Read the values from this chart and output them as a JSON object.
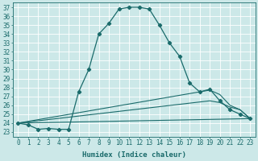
{
  "xlabel": "Humidex (Indice chaleur)",
  "bg_color": "#cce8e8",
  "line_color": "#1a6b6b",
  "grid_color": "#ffffff",
  "xlim": [
    -0.5,
    23.5
  ],
  "ylim": [
    22.5,
    37.5
  ],
  "yticks": [
    23,
    24,
    25,
    26,
    27,
    28,
    29,
    30,
    31,
    32,
    33,
    34,
    35,
    36,
    37
  ],
  "xticks": [
    0,
    1,
    2,
    3,
    4,
    5,
    6,
    7,
    8,
    9,
    10,
    11,
    12,
    13,
    14,
    15,
    16,
    17,
    18,
    19,
    20,
    21,
    22,
    23
  ],
  "curve1_x": [
    0,
    1,
    2,
    3,
    4,
    5,
    6,
    7,
    8,
    9,
    10,
    11,
    12,
    13,
    14,
    15,
    16,
    17,
    18,
    19,
    20,
    21,
    22,
    23
  ],
  "curve1_y": [
    24.0,
    23.8,
    23.3,
    23.4,
    23.3,
    23.3,
    27.5,
    30.0,
    34.0,
    35.2,
    36.8,
    37.0,
    37.0,
    36.8,
    35.0,
    33.0,
    31.5,
    28.5,
    27.5,
    27.8,
    26.5,
    25.5,
    25.0,
    24.5
  ],
  "curve2_x": [
    0,
    23
  ],
  "curve2_y": [
    24.0,
    24.5
  ],
  "curve3_x": [
    0,
    19,
    20,
    21,
    22,
    23
  ],
  "curve3_y": [
    24.0,
    26.5,
    26.3,
    25.8,
    25.5,
    24.5
  ],
  "curve4_x": [
    0,
    19,
    20,
    21,
    22,
    23
  ],
  "curve4_y": [
    24.0,
    27.7,
    27.2,
    26.0,
    25.5,
    24.5
  ],
  "font_size": 6.5,
  "marker": "D",
  "markersize": 2.2,
  "tick_fontsize": 5.5
}
